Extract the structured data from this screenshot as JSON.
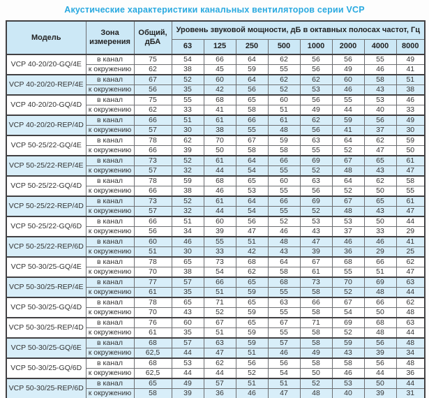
{
  "page": {
    "title": "Акустические характеристики канальных вентиляторов  серии VCP"
  },
  "colors": {
    "accent_title": "#29a9e0",
    "header_bg": "#cce8f6",
    "stripe_bg": "#d8eef9",
    "border_dark": "#414042",
    "border_cell": "#6d6e71"
  },
  "table": {
    "headers": {
      "model": "Модель",
      "zone": "Зона измерения",
      "total": "Общий, дБА",
      "freq_group": "Уровень звуковой мощности, дБ в октавных полосах частот, Гц",
      "frequencies": [
        "63",
        "125",
        "250",
        "500",
        "1000",
        "2000",
        "4000",
        "8000"
      ]
    },
    "models": [
      {
        "name": "VCP 40-20/20-GQ/4E",
        "shaded": false,
        "rows": [
          {
            "zone": "в канал",
            "total": "75",
            "values": [
              54,
              66,
              64,
              62,
              56,
              56,
              55,
              49
            ]
          },
          {
            "zone": "к окружению",
            "total": "62",
            "values": [
              38,
              45,
              59,
              55,
              56,
              49,
              46,
              41
            ]
          }
        ]
      },
      {
        "name": "VCP 40-20/20-REP/4E",
        "shaded": true,
        "rows": [
          {
            "zone": "в канал",
            "total": "67",
            "values": [
              52,
              60,
              64,
              62,
              62,
              60,
              58,
              51
            ]
          },
          {
            "zone": "к окружению",
            "total": "56",
            "values": [
              35,
              42,
              56,
              52,
              53,
              46,
              43,
              38
            ]
          }
        ]
      },
      {
        "name": "VCP 40-20/20-GQ/4D",
        "shaded": false,
        "rows": [
          {
            "zone": "в канал",
            "total": "75",
            "values": [
              55,
              68,
              65,
              60,
              56,
              55,
              53,
              46
            ]
          },
          {
            "zone": "к окружению",
            "total": "62",
            "values": [
              33,
              41,
              58,
              51,
              49,
              44,
              40,
              33
            ]
          }
        ]
      },
      {
        "name": "VCP 40-20/20-REP/4D",
        "shaded": true,
        "rows": [
          {
            "zone": "в канал",
            "total": "66",
            "values": [
              51,
              61,
              66,
              61,
              62,
              59,
              56,
              49
            ]
          },
          {
            "zone": "к окружению",
            "total": "57",
            "values": [
              30,
              38,
              55,
              48,
              56,
              41,
              37,
              30
            ]
          }
        ]
      },
      {
        "name": "VCP 50-25/22-GQ/4E",
        "shaded": false,
        "rows": [
          {
            "zone": "в канал",
            "total": "78",
            "values": [
              62,
              70,
              67,
              59,
              63,
              64,
              62,
              59
            ]
          },
          {
            "zone": "к окружению",
            "total": "66",
            "values": [
              39,
              50,
              58,
              58,
              55,
              52,
              47,
              50
            ]
          }
        ]
      },
      {
        "name": "VCP 50-25/22-REP/4E",
        "shaded": true,
        "rows": [
          {
            "zone": "в канал",
            "total": "73",
            "values": [
              52,
              61,
              64,
              66,
              69,
              67,
              65,
              61
            ]
          },
          {
            "zone": "к окружению",
            "total": "57",
            "values": [
              32,
              44,
              54,
              55,
              52,
              48,
              43,
              47
            ]
          }
        ]
      },
      {
        "name": "VCP 50-25/22-GQ/4D",
        "shaded": false,
        "rows": [
          {
            "zone": "в канал",
            "total": "78",
            "values": [
              59,
              68,
              65,
              60,
              63,
              64,
              62,
              58
            ]
          },
          {
            "zone": "к окружению",
            "total": "66",
            "values": [
              38,
              46,
              53,
              55,
              56,
              52,
              50,
              55
            ]
          }
        ]
      },
      {
        "name": "VCP 50-25/22-REP/4D",
        "shaded": true,
        "rows": [
          {
            "zone": "в канал",
            "total": "73",
            "values": [
              52,
              61,
              64,
              66,
              69,
              67,
              65,
              61
            ]
          },
          {
            "zone": "к окружению",
            "total": "57",
            "values": [
              32,
              44,
              54,
              55,
              52,
              48,
              43,
              47
            ]
          }
        ]
      },
      {
        "name": "VCP 50-25/22-GQ/6D",
        "shaded": false,
        "rows": [
          {
            "zone": "в канал",
            "total": "66",
            "values": [
              51,
              60,
              56,
              52,
              53,
              53,
              50,
              44
            ]
          },
          {
            "zone": "к окружению",
            "total": "56",
            "values": [
              34,
              39,
              47,
              46,
              43,
              37,
              33,
              29
            ]
          }
        ]
      },
      {
        "name": "VCP 50-25/22-REP/6D",
        "shaded": true,
        "rows": [
          {
            "zone": "в канал",
            "total": "60",
            "values": [
              46,
              55,
              51,
              48,
              47,
              46,
              46,
              41
            ]
          },
          {
            "zone": "к окружению",
            "total": "51",
            "values": [
              30,
              33,
              42,
              43,
              39,
              36,
              29,
              25
            ]
          }
        ]
      },
      {
        "name": "VCP 50-30/25-GQ/4E",
        "shaded": false,
        "rows": [
          {
            "zone": "в канал",
            "total": "78",
            "values": [
              65,
              73,
              68,
              64,
              67,
              68,
              66,
              62
            ]
          },
          {
            "zone": "к окружению",
            "total": "70",
            "values": [
              38,
              54,
              62,
              58,
              61,
              55,
              51,
              47
            ]
          }
        ]
      },
      {
        "name": "VCP 50-30/25-REP/4E",
        "shaded": true,
        "rows": [
          {
            "zone": "в канал",
            "total": "77",
            "values": [
              57,
              66,
              65,
              68,
              73,
              70,
              69,
              63
            ]
          },
          {
            "zone": "к окружению",
            "total": "61",
            "values": [
              35,
              51,
              59,
              55,
              58,
              52,
              48,
              44
            ]
          }
        ]
      },
      {
        "name": "VCP 50-30/25-GQ/4D",
        "shaded": false,
        "rows": [
          {
            "zone": "в канал",
            "total": "78",
            "values": [
              65,
              71,
              65,
              63,
              66,
              67,
              66,
              62
            ]
          },
          {
            "zone": "к окружению",
            "total": "70",
            "values": [
              43,
              52,
              59,
              55,
              58,
              54,
              50,
              48
            ]
          }
        ]
      },
      {
        "name": "VCP 50-30/25-REP/4D",
        "shaded": false,
        "rows": [
          {
            "zone": "в канал",
            "total": "76",
            "values": [
              60,
              67,
              65,
              67,
              71,
              69,
              68,
              63
            ]
          },
          {
            "zone": "к окружению",
            "total": "61",
            "values": [
              35,
              51,
              59,
              55,
              58,
              52,
              48,
              44
            ]
          }
        ]
      },
      {
        "name": "VCP 50-30/25-GQ/6E",
        "shaded": true,
        "rows": [
          {
            "zone": "в канал",
            "total": "68",
            "values": [
              57,
              63,
              59,
              57,
              58,
              59,
              56,
              48
            ]
          },
          {
            "zone": "к окружению",
            "total": "62,5",
            "values": [
              44,
              47,
              51,
              46,
              49,
              43,
              39,
              34
            ]
          }
        ]
      },
      {
        "name": "VCP 50-30/25-GQ/6D",
        "shaded": false,
        "rows": [
          {
            "zone": "в канал",
            "total": "68",
            "values": [
              53,
              62,
              56,
              56,
              58,
              58,
              56,
              48
            ]
          },
          {
            "zone": "к окружению",
            "total": "62,5",
            "values": [
              44,
              44,
              52,
              54,
              50,
              46,
              44,
              36
            ]
          }
        ]
      },
      {
        "name": "VCP 50-30/25-REP/6D",
        "shaded": true,
        "rows": [
          {
            "zone": "в канал",
            "total": "65",
            "values": [
              49,
              57,
              51,
              51,
              52,
              53,
              50,
              44
            ]
          },
          {
            "zone": "к окружению",
            "total": "58",
            "values": [
              39,
              36,
              46,
              47,
              48,
              40,
              39,
              31
            ]
          }
        ]
      }
    ]
  }
}
